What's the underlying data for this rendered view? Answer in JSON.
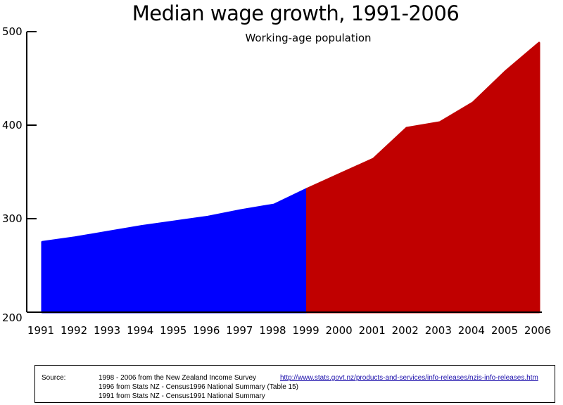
{
  "chart_data": {
    "type": "area",
    "title": "Median wage growth, 1991-2006",
    "subtitle": "Working-age population",
    "xlabel": "",
    "ylabel": "",
    "categories": [
      "1991",
      "1992",
      "1993",
      "1994",
      "1995",
      "1996",
      "1997",
      "1998",
      "1999",
      "2000",
      "2001",
      "2002",
      "2003",
      "2004",
      "2005",
      "2006"
    ],
    "ylim": [
      200,
      500
    ],
    "yticks": [
      200,
      300,
      400,
      500
    ],
    "grid": false,
    "series": [
      {
        "color": "#0000ff",
        "x": [
          "1991",
          "1992",
          "1993",
          "1994",
          "1995",
          "1996",
          "1997",
          "1998",
          "1999"
        ],
        "values": [
          275,
          280,
          286,
          292,
          297,
          302,
          309,
          315,
          332
        ]
      },
      {
        "color": "#c00000",
        "x": [
          "1999",
          "2000",
          "2001",
          "2002",
          "2003",
          "2004",
          "2005",
          "2006"
        ],
        "values": [
          332,
          348,
          364,
          397,
          403,
          424,
          458,
          488
        ]
      }
    ]
  },
  "source": {
    "label": "Source:",
    "lines": [
      "1998 - 2006 from the New Zealand Income Survey",
      "1996 from Stats NZ - Census1996 National Summary (Table 15)",
      "1991 from Stats NZ - Census1991 National Summary"
    ],
    "link": "http://www.stats.govt.nz/products-and-services/info-releases/nzis-info-releases.htm"
  }
}
